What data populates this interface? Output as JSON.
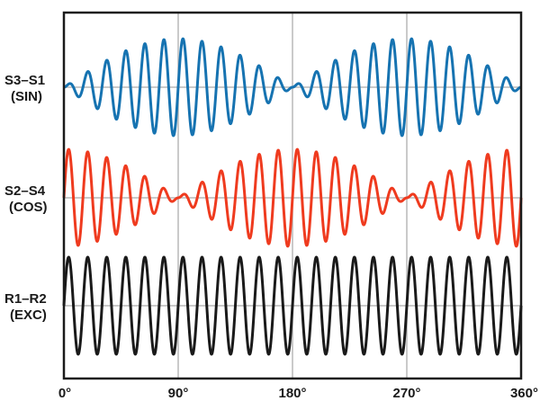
{
  "chart_data": {
    "type": "line",
    "x_range": [
      0,
      360
    ],
    "x_ticks": [
      "0°",
      "90°",
      "180°",
      "270°",
      "360°"
    ],
    "x_tick_values": [
      0,
      90,
      180,
      270,
      360
    ],
    "grid": "vertical lines at 90° intervals, zero line per trace",
    "carrier_cycles": 24,
    "series": [
      {
        "name": "S3–S1",
        "sub": "(SIN)",
        "color": "#1673b1",
        "envelope": "sin",
        "amplitude": 1.0
      },
      {
        "name": "S2–S4",
        "sub": "(COS)",
        "color": "#ef3b1f",
        "envelope": "cos",
        "amplitude": 1.0
      },
      {
        "name": "R1–R2",
        "sub": "(EXC)",
        "color": "#1a1a1a",
        "envelope": "constant",
        "amplitude": 1.0
      }
    ]
  }
}
